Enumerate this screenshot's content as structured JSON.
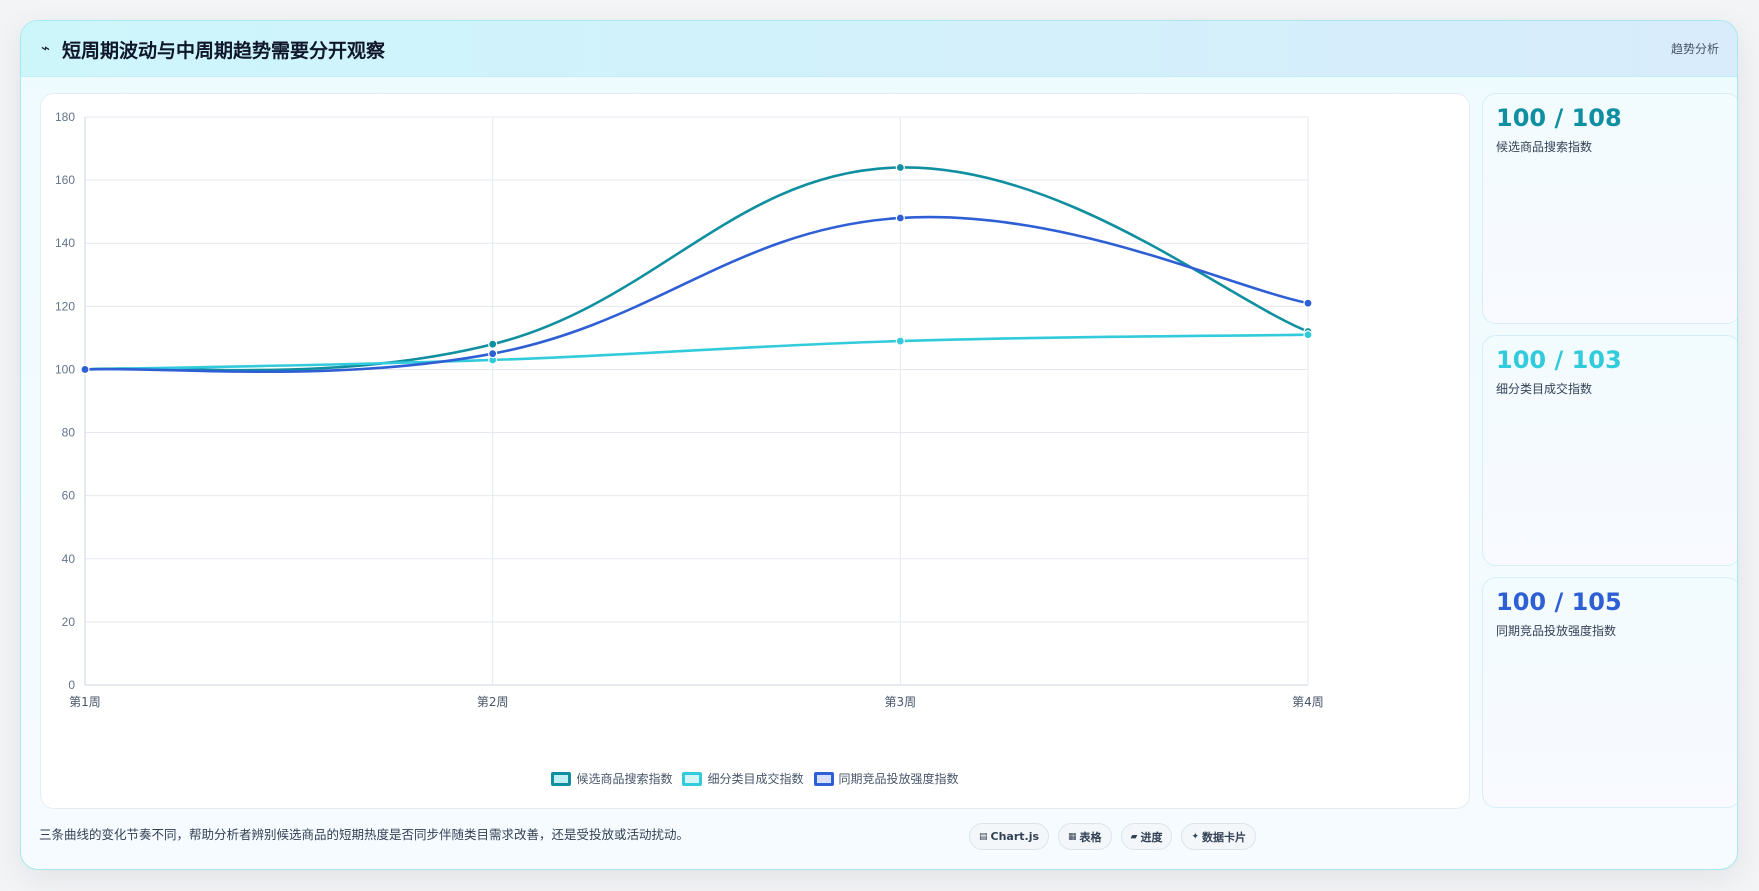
{
  "header": {
    "icon": "⌁",
    "title": "短周期波动与中周期趋势需要分开观察",
    "tag": "趋势分析"
  },
  "chart_data": {
    "type": "line",
    "categories": [
      "第1周",
      "第2周",
      "第3周",
      "第4周"
    ],
    "ylim": [
      0,
      180
    ],
    "yticks": [
      0,
      20,
      40,
      60,
      80,
      100,
      120,
      140,
      160,
      180
    ],
    "grid": true,
    "legend_position": "bottom",
    "series": [
      {
        "name": "候选商品搜索指数",
        "color": "#0f8fa0",
        "values": [
          100,
          108,
          164,
          112
        ]
      },
      {
        "name": "细分类目成交指数",
        "color": "#32cbdc",
        "values": [
          100,
          103,
          109,
          111
        ]
      },
      {
        "name": "同期竞品投放强度指数",
        "color": "#2f5fd5",
        "values": [
          100,
          105,
          148,
          121
        ]
      }
    ]
  },
  "kpis": [
    {
      "value": "100 / 108",
      "label": "候选商品搜索指数",
      "color": "#0f8fa0"
    },
    {
      "value": "100 / 103",
      "label": "细分类目成交指数",
      "color": "#32cbdc"
    },
    {
      "value": "100 / 105",
      "label": "同期竞品投放强度指数",
      "color": "#2f5fd5"
    }
  ],
  "footer": {
    "note": "三条曲线的变化节奏不同，帮助分析者辨别候选商品的短期热度是否同步伴随类目需求改善，还是受投放或活动扰动。",
    "chips": [
      {
        "icon": "chart-icon",
        "glyph": "▤",
        "label": "Chart.js"
      },
      {
        "icon": "table-icon",
        "glyph": "▦",
        "label": "表格"
      },
      {
        "icon": "progress-icon",
        "glyph": "▰",
        "label": "进度"
      },
      {
        "icon": "sparkle-icon",
        "glyph": "✦",
        "label": "数据卡片"
      }
    ]
  }
}
